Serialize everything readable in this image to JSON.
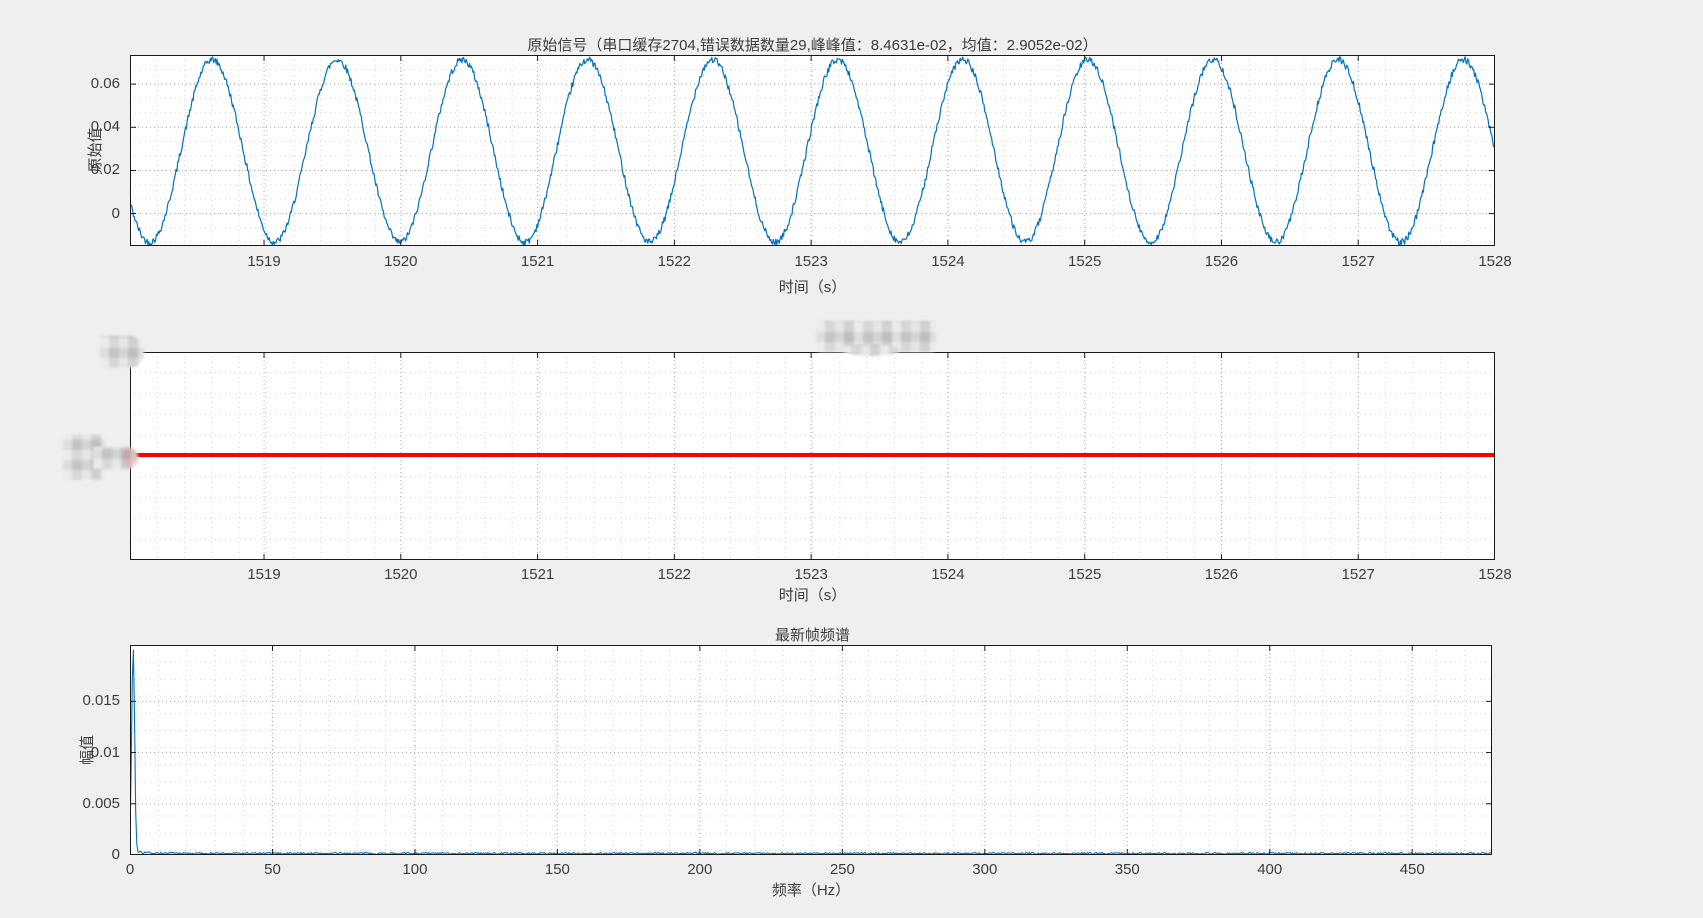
{
  "figure": {
    "background": "#efefef",
    "plot_bg": "#ffffff",
    "axis_color": "#1a1a1a",
    "grid_major_color": "#ababab",
    "grid_minor_color": "#d4d4d4",
    "text_color": "#3c3c3c",
    "line_blue": "#0072bd",
    "line_red": "#ff0000"
  },
  "chart_data": [
    {
      "type": "line",
      "title": "原始信号（串口缓存2704,错误数据数量29,峰峰值：8.4631e-02，均值：2.9052e-02）",
      "xlabel": "时间（s）",
      "ylabel": "原始值",
      "legend": "none",
      "grid": "dotted major+minor",
      "xlim": [
        1518.02,
        1528
      ],
      "ylim": [
        -0.015,
        0.0735
      ],
      "xticks": [
        1519,
        1520,
        1521,
        1522,
        1523,
        1524,
        1525,
        1526,
        1527,
        1528
      ],
      "xtick_labels": [
        "1519",
        "1520",
        "1521",
        "1522",
        "1523",
        "1524",
        "1525",
        "1526",
        "1527",
        "1528"
      ],
      "yticks": [
        0,
        0.02,
        0.04,
        0.06
      ],
      "ytick_labels": [
        "0",
        "0.02",
        "0.04",
        "0.06"
      ],
      "series": [
        {
          "name": "原始信号",
          "type": "noisy_sine",
          "color": "#0072bd",
          "mean": 0.029052,
          "peak_to_peak": 0.084631,
          "frequency_hz": 1.093,
          "peak_time_s": 1518.62,
          "noise_amp": 0.0016
        }
      ]
    },
    {
      "type": "line",
      "title": "",
      "xlabel": "时间（s）",
      "ylabel": "",
      "legend": "none",
      "grid": "dotted major+minor",
      "xlim": [
        1518.02,
        1528
      ],
      "ylim": [
        0,
        1
      ],
      "xticks": [
        1519,
        1520,
        1521,
        1522,
        1523,
        1524,
        1525,
        1526,
        1527,
        1528
      ],
      "xtick_labels": [
        "1519",
        "1520",
        "1521",
        "1522",
        "1523",
        "1524",
        "1525",
        "1526",
        "1527",
        "1528"
      ],
      "yticks": [],
      "ytick_labels": [],
      "series": [
        {
          "name": "constant-red-line",
          "type": "hline",
          "color": "#ff0000",
          "value": 0.505,
          "line_width": 4
        }
      ]
    },
    {
      "type": "line",
      "title": "最新帧频谱",
      "xlabel": "频率（Hz）",
      "ylabel": "幅值",
      "legend": "none",
      "grid": "dotted major+minor",
      "xlim": [
        0,
        478
      ],
      "ylim": [
        0,
        0.0205
      ],
      "xticks": [
        0,
        50,
        100,
        150,
        200,
        250,
        300,
        350,
        400,
        450
      ],
      "xtick_labels": [
        "0",
        "50",
        "100",
        "150",
        "200",
        "250",
        "300",
        "350",
        "400",
        "450"
      ],
      "yticks": [
        0,
        0.005,
        0.01,
        0.015
      ],
      "ytick_labels": [
        "0",
        "0.005",
        "0.01",
        "0.015"
      ],
      "series": [
        {
          "name": "最新帧频谱",
          "type": "spectrum_peak",
          "color": "#0072bd",
          "peak_freq_hz": 1.1,
          "peak_value": 0.0202,
          "peak_width_hz": 0.5,
          "baseline": 0.00018
        }
      ]
    }
  ]
}
